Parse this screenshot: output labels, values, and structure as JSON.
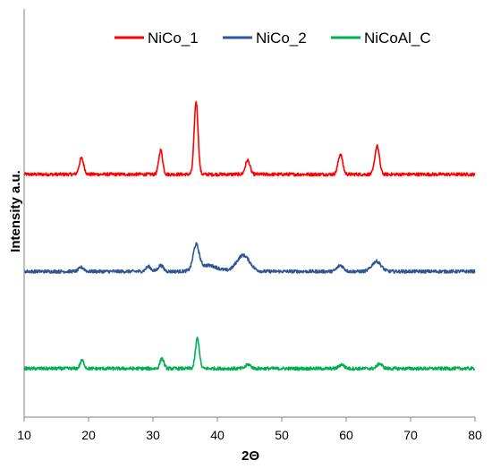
{
  "chart_data": {
    "type": "line",
    "title": "",
    "xlabel": "2Θ",
    "ylabel": "Intensity a.u.",
    "xlim": [
      10,
      80
    ],
    "xticks": [
      10,
      20,
      30,
      40,
      50,
      60,
      70,
      80
    ],
    "y_tick_labels": false,
    "grid": false,
    "legend_position": "top",
    "noise_amplitude": 0.004,
    "series": [
      {
        "name": "NiCo_1",
        "color": "#FF0000",
        "baseline": 0.6,
        "peaks": [
          {
            "x": 18.9,
            "height": 0.04,
            "width": 0.35
          },
          {
            "x": 31.2,
            "height": 0.06,
            "width": 0.3
          },
          {
            "x": 36.7,
            "height": 0.18,
            "width": 0.3
          },
          {
            "x": 44.7,
            "height": 0.035,
            "width": 0.35
          },
          {
            "x": 59.1,
            "height": 0.05,
            "width": 0.35
          },
          {
            "x": 64.8,
            "height": 0.07,
            "width": 0.35
          }
        ]
      },
      {
        "name": "NiCo_2",
        "color": "#2F5597",
        "baseline": 0.36,
        "peaks": [
          {
            "x": 18.9,
            "height": 0.01,
            "width": 0.4
          },
          {
            "x": 29.3,
            "height": 0.012,
            "width": 0.4
          },
          {
            "x": 31.2,
            "height": 0.015,
            "width": 0.4
          },
          {
            "x": 36.7,
            "height": 0.06,
            "width": 0.45
          },
          {
            "x": 38.5,
            "height": 0.015,
            "width": 1.5
          },
          {
            "x": 44.0,
            "height": 0.04,
            "width": 1.0
          },
          {
            "x": 59.1,
            "height": 0.015,
            "width": 0.5
          },
          {
            "x": 64.7,
            "height": 0.025,
            "width": 0.7
          }
        ]
      },
      {
        "name": "NiCoAl_C",
        "color": "#00B050",
        "baseline": 0.12,
        "peaks": [
          {
            "x": 19.0,
            "height": 0.02,
            "width": 0.3
          },
          {
            "x": 31.4,
            "height": 0.025,
            "width": 0.3
          },
          {
            "x": 36.9,
            "height": 0.075,
            "width": 0.3
          },
          {
            "x": 44.8,
            "height": 0.01,
            "width": 0.4
          },
          {
            "x": 59.3,
            "height": 0.01,
            "width": 0.4
          },
          {
            "x": 65.2,
            "height": 0.012,
            "width": 0.4
          }
        ]
      }
    ]
  }
}
